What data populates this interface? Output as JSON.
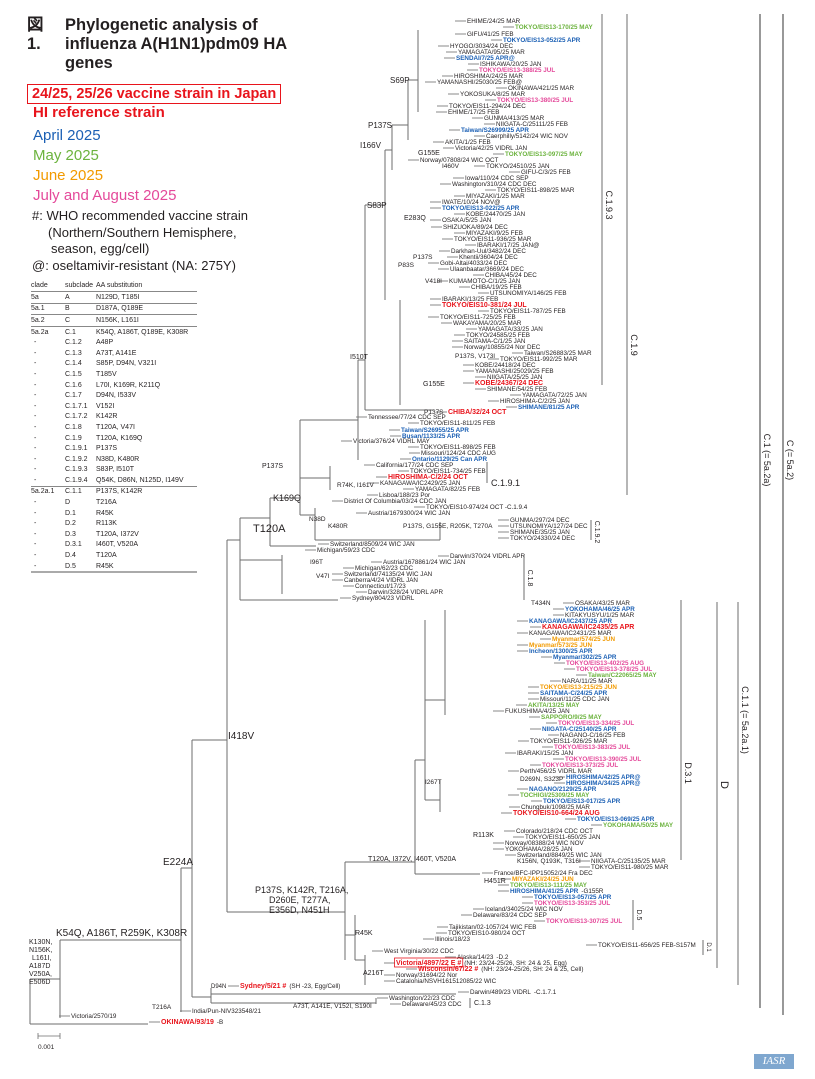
{
  "title": {
    "prefix": "図1.",
    "text": "Phylogenetic analysis of influenza A(H1N1)pdm09 HA genes"
  },
  "legend": {
    "vaccine_box": "24/25, 25/26 vaccine strain in Japan",
    "hi_reference": "HI reference strain",
    "april": "April 2025",
    "may": "May 2025",
    "june": "June 2025",
    "july_aug": "July and August 2025",
    "who_note_1": "#: WHO recommended vaccine strain",
    "who_note_2": "(Northern/Southern Hemisphere,",
    "who_note_3": "season, egg/cell)",
    "resistant_note": "@: oseltamivir-resistant (NA: 275Y)"
  },
  "colors": {
    "k": "#231f20",
    "r": "#e8141c",
    "b": "#1a5fb4",
    "g": "#6cb33e",
    "o": "#f29a00",
    "p": "#e4499a"
  },
  "clade_table": {
    "headers": [
      "clade",
      "subclade",
      "AA substitution"
    ],
    "rows": [
      [
        "5a",
        "A",
        "N129D, T185I"
      ],
      [
        "5a.1",
        "B",
        "D187A, Q189E"
      ],
      [
        "5a.2",
        "C",
        "N156K, L161I"
      ],
      [
        "5a.2a",
        "C.1",
        "K54Q, A186T, Q189E, K308R"
      ],
      [
        "-",
        "C.1.2",
        "A48P"
      ],
      [
        "-",
        "C.1.3",
        "A73T, A141E"
      ],
      [
        "-",
        "C.1.4",
        "S85P, D94N, V321I"
      ],
      [
        "-",
        "C.1.5",
        "T185V"
      ],
      [
        "-",
        "C.1.6",
        "L70I, K169R, K211Q"
      ],
      [
        "-",
        "C.1.7",
        "D94N, I533V"
      ],
      [
        "-",
        "C.1.7.1",
        "V152I"
      ],
      [
        "-",
        "C.1.7.2",
        "K142R"
      ],
      [
        "-",
        "C.1.8",
        "T120A, V47I"
      ],
      [
        "-",
        "C.1.9",
        "T120A, K169Q"
      ],
      [
        "-",
        "C.1.9.1",
        "P137S"
      ],
      [
        "-",
        "C.1.9.2",
        "N38D, K480R"
      ],
      [
        "-",
        "C.1.9.3",
        "S83P, I510T"
      ],
      [
        "-",
        "C.1.9.4",
        "Q54K, D86N, N125D, I149V"
      ],
      [
        "5a.2a.1",
        "C.1.1",
        "P137S, K142R"
      ],
      [
        "-",
        "D",
        "T216A"
      ],
      [
        "-",
        "D.1",
        "R45K"
      ],
      [
        "-",
        "D.2",
        "R113K"
      ],
      [
        "-",
        "D.3",
        "T120A, I372V"
      ],
      [
        "-",
        "D.3.1",
        "I460T, V520A"
      ],
      [
        "-",
        "D.4",
        "T120A"
      ],
      [
        "-",
        "D.5",
        "R45K"
      ]
    ]
  },
  "leaves": [
    {
      "t": "EHIME/24/25 MAR",
      "c": "k"
    },
    {
      "t": "TOKYO/EIS13-170/25 MAY",
      "c": "g"
    },
    {
      "t": "GIFU/41/25 FEB",
      "c": "k"
    },
    {
      "t": "TOKYO/EIS13-052/25 APR",
      "c": "b"
    },
    {
      "t": "HYOGO/3034/24 DEC",
      "c": "k"
    },
    {
      "t": "YAMAGATA/95/25 MAR",
      "c": "k"
    },
    {
      "t": "SENDAI/7/25 APR@",
      "c": "b"
    },
    {
      "t": "ISHIKAWA/20/25 JAN",
      "c": "k"
    },
    {
      "t": "TOKYO/EIS13-388/25 JUL",
      "c": "p"
    },
    {
      "t": "HIROSHIMA/24/25 MAR",
      "c": "k"
    },
    {
      "t": "YAMANASHI/25030/25 FEB@",
      "c": "k"
    },
    {
      "t": "OKINAWA/421/25 MAR",
      "c": "k"
    },
    {
      "t": "YOKOSUKA/8/25 MAR",
      "c": "k"
    },
    {
      "t": "TOKYO/EIS13-380/25 JUL",
      "c": "p"
    },
    {
      "t": "TOKYO/EIS11-294/24 DEC",
      "c": "k"
    },
    {
      "t": "EHIME/17/25 FEB",
      "c": "k"
    },
    {
      "t": "GUNMA/413/25 MAR",
      "c": "k"
    },
    {
      "t": "NIIGATA-C/25111/25 FEB",
      "c": "k"
    },
    {
      "t": "Taiwan/S26999/25 APR",
      "c": "b"
    },
    {
      "t": "Caerphilly/5142/24 WIC NOV",
      "c": "k"
    },
    {
      "t": "AKITA/1/25 FEB",
      "c": "k"
    },
    {
      "t": "Victoria/42/25 VIDRL JAN",
      "c": "k"
    },
    {
      "t": "TOKYO/EIS13-097/25 MAY",
      "c": "g"
    },
    {
      "t": "Norway/07808/24 WIC OCT",
      "c": "k"
    },
    {
      "t": "TOKYO/24510/25 JAN",
      "c": "k"
    },
    {
      "t": "GIFU-C/3/25 FEB",
      "c": "k"
    },
    {
      "t": "Iowa/110/24 CDC SEP",
      "c": "k"
    },
    {
      "t": "Washington/310/24 CDC DEC",
      "c": "k"
    },
    {
      "t": "TOKYO/EIS11-898/25 MAR",
      "c": "k"
    },
    {
      "t": "MIYAZAKI/1/25 MAR",
      "c": "k"
    },
    {
      "t": "IWATE/10/24 NOV@",
      "c": "k"
    },
    {
      "t": "TOKYO/EIS13-022/25 APR",
      "c": "b"
    },
    {
      "t": "KOBE/24470/25 JAN",
      "c": "k"
    },
    {
      "t": "OSAKA/5/25 JAN",
      "c": "k"
    },
    {
      "t": "SHIZUOKA/89/24 DEC",
      "c": "k"
    },
    {
      "t": "MIYAZAKI/9/25 FEB",
      "c": "k"
    },
    {
      "t": "TOKYO/EIS11-936/25 MAR",
      "c": "k"
    },
    {
      "t": "IBARAKI/17/25 JAN@",
      "c": "k"
    },
    {
      "t": "Darkhan-Uul/3482/24 DEC",
      "c": "k"
    },
    {
      "t": "Khentii/3604/24 DEC",
      "c": "k"
    },
    {
      "t": "Gobi-Altai/4033/24 DEC",
      "c": "k"
    },
    {
      "t": "Ulaanbaatar/3669/24 DEC",
      "c": "k"
    },
    {
      "t": "CHIBA/45/24 DEC",
      "c": "k"
    },
    {
      "t": "KUMAMOTO-C/1/25 JAN",
      "c": "k"
    },
    {
      "t": "CHIBA/19/25 FEB",
      "c": "k"
    },
    {
      "t": "UTSUNOMIYA/146/25 FEB",
      "c": "k"
    },
    {
      "t": "IBARAKI/13/25 FEB",
      "c": "k"
    },
    {
      "t": "TOKYO/EIS10-381/24 JUL",
      "c": "r"
    },
    {
      "t": "TOKYO/EIS11-787/25 FEB",
      "c": "k"
    },
    {
      "t": "TOKYO/EIS11-725/25 FEB",
      "c": "k"
    },
    {
      "t": "WAKAYAMA/20/25 MAR",
      "c": "k"
    },
    {
      "t": "YAMAGATA/33/25 JAN",
      "c": "k"
    },
    {
      "t": "TOKYO/24585/25 FEB",
      "c": "k"
    },
    {
      "t": "SAITAMA-C/1/25 JAN",
      "c": "k"
    },
    {
      "t": "Norway/10855/24 Nor DEC",
      "c": "k"
    },
    {
      "t": "Taiwan/S26883/25 MAR",
      "c": "k"
    },
    {
      "t": "TOKYO/EIS11-992/25 MAR",
      "c": "k"
    },
    {
      "t": "KOBE/24418/24 DEC",
      "c": "k"
    },
    {
      "t": "YAMANASHI/25029/25 FEB",
      "c": "k"
    },
    {
      "t": "NIIGATA/25/25 JAN",
      "c": "k"
    },
    {
      "t": "KOBE/24367/24 DEC",
      "c": "r"
    },
    {
      "t": "SHIMANE/54/25 FEB",
      "c": "k"
    },
    {
      "t": "YAMAGATA/72/25 JAN",
      "c": "k"
    },
    {
      "t": "HIROSHIMA-C/2/25 JAN",
      "c": "k"
    },
    {
      "t": "SHIMANE/81/25 APR",
      "c": "b"
    },
    {
      "t": "CHIBA/32/24 OCT",
      "c": "r"
    },
    {
      "t": "Tennessee/77/24 CDC SEP",
      "c": "k"
    },
    {
      "t": "TOKYO/EIS11-811/25 FEB",
      "c": "k"
    },
    {
      "t": "Taiwan/S26955/25 APR",
      "c": "b"
    },
    {
      "t": "Busan/1133/25 APR",
      "c": "b"
    },
    {
      "t": "Victoria/376/24 VIDRL MAY",
      "c": "k"
    },
    {
      "t": "TOKYO/EIS11-898/25 FEB",
      "c": "k"
    },
    {
      "t": "Missouri/124/24 CDC AUG",
      "c": "k"
    },
    {
      "t": "Ontario/1129/25 Can APR",
      "c": "b"
    },
    {
      "t": "California/177/24 CDC SEP",
      "c": "k"
    },
    {
      "t": "TOKYO/EIS11-734/25 FEB",
      "c": "k"
    },
    {
      "t": "HIROSHIMA-C/2/24 OCT",
      "c": "r"
    },
    {
      "t": "KANAGAWA/IC2429/25 JAN",
      "c": "k"
    },
    {
      "t": "YAMAGATA/82/25 FEB",
      "c": "k"
    },
    {
      "t": "Lisboa/188/23 Por",
      "c": "k"
    },
    {
      "t": "District Of Columbia/03/24 CDC JAN",
      "c": "k"
    },
    {
      "t": "TOKYO/EIS10-974/24 OCT -C.1.9.4",
      "c": "k"
    },
    {
      "t": "Austria/1679300/24 WIC JAN",
      "c": "k"
    },
    {
      "t": "GUNMA/297/24 DEC",
      "c": "k"
    },
    {
      "t": "UTSUNOMIYA/127/24 DEC",
      "c": "k"
    },
    {
      "t": "SHIMANE/35/25 JAN",
      "c": "k"
    },
    {
      "t": "TOKYO/24330/24 DEC",
      "c": "k"
    },
    {
      "t": "Switzerland/8509/24 WIC JAN",
      "c": "k"
    },
    {
      "t": "Michigan/59/23 CDC",
      "c": "k"
    },
    {
      "t": "Darwin/370/24 VIDRL APR",
      "c": "k"
    },
    {
      "t": "Austria/1678861/24 WIC JAN",
      "c": "k"
    },
    {
      "t": "Michigan/62/23 CDC",
      "c": "k"
    },
    {
      "t": "Switzerland/74135/24 WIC JAN",
      "c": "k"
    },
    {
      "t": "Canberra/4/24 VIDRL JAN",
      "c": "k"
    },
    {
      "t": "Connecticut/17/23",
      "c": "k"
    },
    {
      "t": "Darwin/328/24 VIDRL APR",
      "c": "k"
    },
    {
      "t": "Sydney/804/23 VIDRL",
      "c": "k"
    },
    {
      "t": "OSAKA/43/25 MAR",
      "c": "k"
    },
    {
      "t": "YOKOHAMA/46/25 APR",
      "c": "b"
    },
    {
      "t": "KITAKYUSYU/1/25 MAR",
      "c": "k"
    },
    {
      "t": "KANAGAWA/IC2437/25 APR",
      "c": "b"
    },
    {
      "t": "KANAGAWA/IC2435/25 APR",
      "c": "r"
    },
    {
      "t": "KANAGAWA/IC2431/25 MAR",
      "c": "k"
    },
    {
      "t": "Myanmar/574/25 JUN",
      "c": "o"
    },
    {
      "t": "Myanmar/573/25 JUN",
      "c": "o"
    },
    {
      "t": "Incheon/1300/25 APR",
      "c": "b"
    },
    {
      "t": "Myanmar/302/25 APR",
      "c": "b"
    },
    {
      "t": "TOKYO/EIS13-402/25 AUG",
      "c": "p"
    },
    {
      "t": "TOKYO/EIS13-378/25 JUL",
      "c": "p"
    },
    {
      "t": "Taiwan/C22065/25 MAY",
      "c": "g"
    },
    {
      "t": "NARA/11/25 MAR",
      "c": "k"
    },
    {
      "t": "TOKYO/EIS13-215/25 JUN",
      "c": "o"
    },
    {
      "t": "SAITAMA-C/24/25 APR",
      "c": "b"
    },
    {
      "t": "Missouri/11/25 CDC JAN",
      "c": "k"
    },
    {
      "t": "AKITA/13/25 MAY",
      "c": "g"
    },
    {
      "t": "FUKUSHIMA/4/25 JAN",
      "c": "k"
    },
    {
      "t": "SAPPORO/9/25 MAY",
      "c": "g"
    },
    {
      "t": "TOKYO/EIS13-334/25 JUL",
      "c": "p"
    },
    {
      "t": "NIIGATA-C/25140/25 APR",
      "c": "b"
    },
    {
      "t": "NAGANO-C/16/25 FEB",
      "c": "k"
    },
    {
      "t": "TOKYO/EIS11-926/25 MAR",
      "c": "k"
    },
    {
      "t": "TOKYO/EIS13-383/25 JUL",
      "c": "p"
    },
    {
      "t": "IBARAKI/15/25 JAN",
      "c": "k"
    },
    {
      "t": "TOKYO/EIS13-390/25 JUL",
      "c": "p"
    },
    {
      "t": "TOKYO/EIS13-373/25 JUL",
      "c": "p"
    },
    {
      "t": "Perth/456/25 VIDRL MAR",
      "c": "k"
    },
    {
      "t": "HIROSHIMA/42/25 APR@",
      "c": "b"
    },
    {
      "t": "HIROSHIMA/34/25 APR@",
      "c": "b"
    },
    {
      "t": "NAGANO/2129/25 APR",
      "c": "b"
    },
    {
      "t": "TOCHIGI/25309/25 MAY",
      "c": "g"
    },
    {
      "t": "TOKYO/EIS13-017/25 APR",
      "c": "b"
    },
    {
      "t": "Chungbuk/1098/25 MAR",
      "c": "k"
    },
    {
      "t": "TOKYO/EIS10-664/24 AUG",
      "c": "r"
    },
    {
      "t": "TOKYO/EIS13-069/25 APR",
      "c": "b"
    },
    {
      "t": "YOKOHAMA/50/25 MAY",
      "c": "g"
    },
    {
      "t": "Colorado/218/24 CDC OCT",
      "c": "k"
    },
    {
      "t": "TOKYO/EIS11-650/25 JAN",
      "c": "k"
    },
    {
      "t": "Norway/08388/24 WIC NOV",
      "c": "k"
    },
    {
      "t": "YOKOHAMA/28/25 JAN",
      "c": "k"
    },
    {
      "t": "Switzerland/8849/25 WIC JAN",
      "c": "k"
    },
    {
      "t": "NIIGATA-C/25135/25 MAR",
      "c": "k"
    },
    {
      "t": "TOKYO/EIS11-980/25 MAR",
      "c": "k"
    },
    {
      "t": "France/BFC-IPP15052/24 Fra DEC",
      "c": "k"
    },
    {
      "t": "MIYAZAKI/24/25 JUN",
      "c": "o"
    },
    {
      "t": "TOKYO/EIS13-111/25 MAY",
      "c": "g"
    },
    {
      "t": "HIROSHIMA/41/25 APR",
      "c": "b",
      "n": "-G155R"
    },
    {
      "t": "TOKYO/EIS13-057/25 APR",
      "c": "b"
    },
    {
      "t": "TOKYO/EIS13-353/25 JUL",
      "c": "p"
    },
    {
      "t": "Iceland/34025/24 WIC NOV",
      "c": "k"
    },
    {
      "t": "Delaware/83/24 CDC SEP",
      "c": "k"
    },
    {
      "t": "TOKYO/EIS13-307/25 JUL",
      "c": "p"
    },
    {
      "t": "Tajikistan/02-1057/24 WIC FEB",
      "c": "k"
    },
    {
      "t": "TOKYO/EIS10-980/24 OCT",
      "c": "k"
    },
    {
      "t": "Illinois/18/23",
      "c": "k"
    },
    {
      "t": "TOKYO/EIS11-656/25 FEB-S157M",
      "c": "k"
    },
    {
      "t": "West Virginia/30/22 CDC",
      "c": "k"
    },
    {
      "t": "Alaska/14/23",
      "c": "k",
      "n": "-D.2"
    },
    {
      "t": "Victoria/4897/22 E #",
      "c": "r",
      "box": true,
      "n": "(NH: 23/24-25/26, SH: 24 & 25, Egg)"
    },
    {
      "t": "Wisconsin/67/22 #",
      "c": "r",
      "n": "(NH: 23/24-25/26, SH: 24 & 25, Cell)"
    },
    {
      "t": "Norway/31694/22 Nor",
      "c": "k"
    },
    {
      "t": "Catalonia/NSVH161512085/22 WIC",
      "c": "k"
    },
    {
      "t": "Sydney/5/21 #",
      "c": "r",
      "n": "(SH -23, Egg/Cell)"
    },
    {
      "t": "Darwin/489/23 VIDRL",
      "c": "k",
      "n": "-C.1.7.1"
    },
    {
      "t": "Washington/22/23 CDC",
      "c": "k"
    },
    {
      "t": "Delaware/45/23 CDC",
      "c": "k"
    },
    {
      "t": "India/Pun-NIV323548/21",
      "c": "k"
    },
    {
      "t": "Victoria/2570/19",
      "c": "k"
    },
    {
      "t": "OKINAWA/93/19",
      "c": "r",
      "n": "-B"
    }
  ],
  "mutations": [
    "S69P",
    "P137S",
    "I166V",
    "G155E",
    "I460V",
    "S83P",
    "E283Q",
    "P137S",
    "P83S",
    "V418I",
    "P137S, V173I",
    "G155E",
    "I510T",
    "P137S",
    "P137S",
    "R74K, I161V",
    "K169Q",
    "T120A",
    "N38D",
    "K480R",
    "P137S, G155E, R205K, T270A",
    "I96T",
    "V47I",
    "T434N",
    "I418V",
    "I267T",
    "D269N, S323P",
    "R113K",
    "K156N, Q193K, T316I",
    "T120A, I372V, I460T, V520A",
    "H451R",
    "E224A",
    "P137S, K142R, T216A,",
    "D260E, T277A,",
    "E356D, N451H",
    "R45K",
    "A216T",
    "K54Q, A186T, R259K, K308R",
    "K130N,",
    "N156K,",
    "L161I,",
    "A187D",
    "V250A,",
    "E506D",
    "D94N",
    "T216A",
    "A73T, A141E, V152I, S190I"
  ],
  "clade_labels": [
    "C.1.9.3",
    "C.1.9",
    "C.1 (= 5a.2a)",
    "C (= 5a.2)",
    "C.1.9.1",
    "C.1.9.2",
    "C.1.8",
    "D.3.1",
    "D",
    "C.1.1 (= 5a.2a.1)",
    "D.5",
    "D.1",
    "C.1.3"
  ],
  "scale_bar": "0.001",
  "logo": "IASR"
}
